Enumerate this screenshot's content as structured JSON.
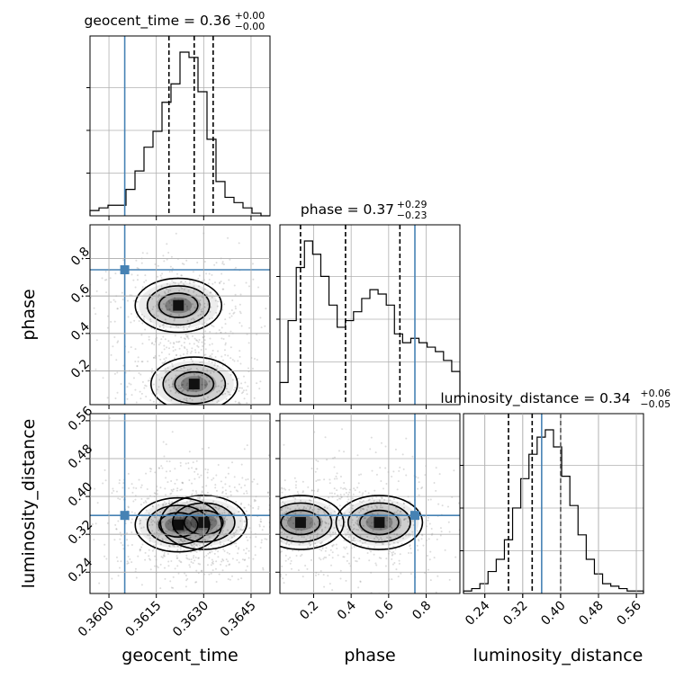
{
  "chart_data": {
    "type": "corner",
    "parameters": [
      "geocent_time",
      "phase",
      "luminosity_distance"
    ],
    "truths": {
      "geocent_time": 0.3605,
      "phase": 0.74,
      "luminosity_distance": 0.36
    },
    "titles": [
      {
        "param": "geocent_time",
        "median": "0.36",
        "plus": "+0.00",
        "minus": "−0.00",
        "prefix": "geocent_time = "
      },
      {
        "param": "phase",
        "median": "0.37",
        "plus": "+0.29",
        "minus": "−0.23",
        "prefix": "phase = "
      },
      {
        "param": "luminosity_distance",
        "median": "0.34",
        "plus": "+0.06",
        "minus": "−0.05",
        "prefix": "luminosity_distance = "
      }
    ],
    "axes": {
      "geocent_time": {
        "range": [
          0.3594,
          0.3651
        ],
        "ticks": [
          "0.3600",
          "0.3615",
          "0.3630",
          "0.3645"
        ],
        "tick_values": [
          0.36,
          0.3615,
          0.363,
          0.3645
        ],
        "label": "geocent_time"
      },
      "phase": {
        "range": [
          0.02,
          0.98
        ],
        "ticks": [
          "0.2",
          "0.4",
          "0.6",
          "0.8"
        ],
        "tick_values": [
          0.2,
          0.4,
          0.6,
          0.8
        ],
        "label": "phase"
      },
      "luminosity_distance": {
        "range": [
          0.195,
          0.575
        ],
        "ticks": [
          "0.24",
          "0.32",
          "0.40",
          "0.48",
          "0.56"
        ],
        "tick_values": [
          0.24,
          0.32,
          0.4,
          0.48,
          0.56
        ],
        "label": "luminosity_distance"
      }
    },
    "histograms": {
      "geocent_time": {
        "quantiles": [
          0.3619,
          0.3627,
          0.3633
        ],
        "counts": [
          2,
          3,
          4,
          4,
          10,
          17,
          26,
          32,
          43,
          50,
          62,
          60,
          47,
          29,
          13,
          7,
          5,
          3,
          1,
          0
        ]
      },
      "phase": {
        "quantiles": [
          0.13,
          0.37,
          0.66
        ],
        "counts": [
          10,
          38,
          62,
          74,
          68,
          58,
          45,
          35,
          38,
          42,
          48,
          52,
          50,
          45,
          32,
          28,
          30,
          28,
          26,
          24,
          20,
          15
        ]
      },
      "luminosity_distance": {
        "quantiles": [
          0.29,
          0.34,
          0.4
        ],
        "counts": [
          1,
          2,
          4,
          9,
          14,
          22,
          35,
          47,
          57,
          64,
          67,
          60,
          48,
          36,
          24,
          14,
          8,
          4,
          3,
          2,
          1,
          1
        ]
      }
    },
    "density_centers": {
      "phase_vs_geocent_time": [
        {
          "x": 0.3627,
          "y": 0.13
        },
        {
          "x": 0.3622,
          "y": 0.55
        }
      ],
      "luminosity_distance_vs_geocent_time": [
        {
          "x": 0.3622,
          "y": 0.34
        },
        {
          "x": 0.363,
          "y": 0.345
        }
      ],
      "luminosity_distance_vs_phase": [
        {
          "x": 0.13,
          "y": 0.345
        },
        {
          "x": 0.55,
          "y": 0.345
        }
      ]
    },
    "colors": {
      "truth": "#4682b4",
      "hist": "#000000",
      "grid": "#b0b0b0",
      "scatter": "#9a9a9a"
    }
  }
}
